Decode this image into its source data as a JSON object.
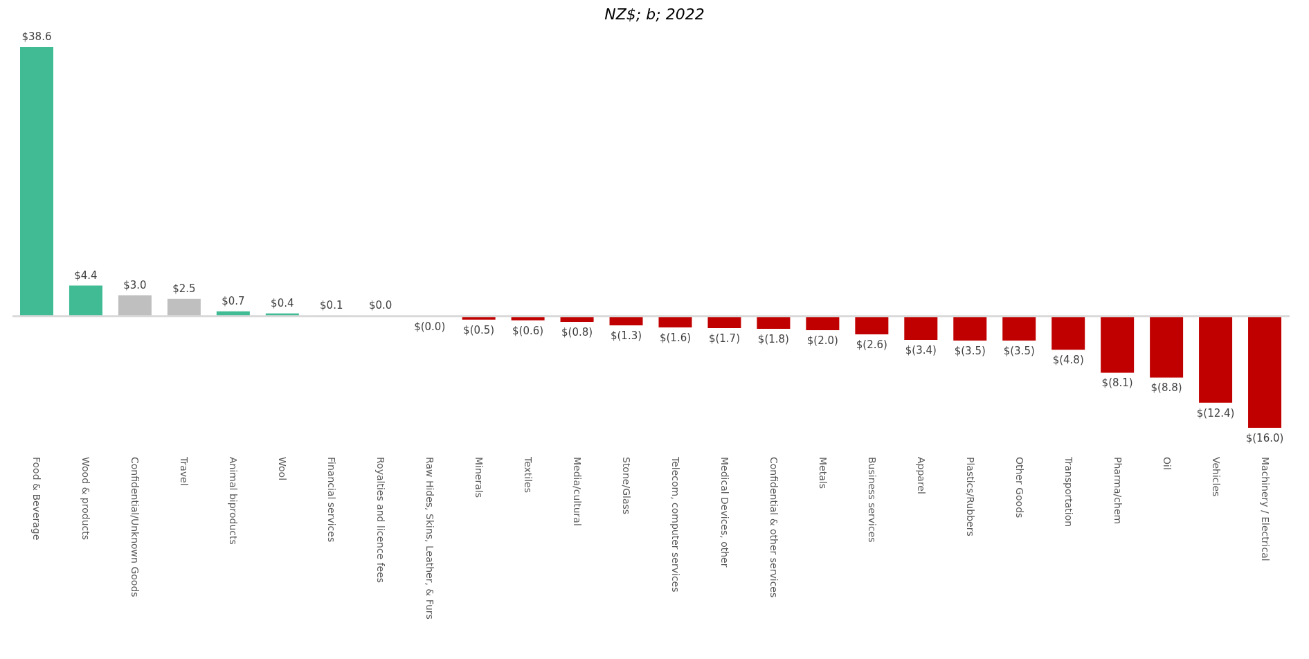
{
  "chart_data": {
    "type": "bar",
    "title": "NZ$; b; 2022",
    "categories": [
      "Food & Beverage",
      "Wood & products",
      "Confidential/Unknown Goods",
      "Travel",
      "Animal biproducts",
      "Wool",
      "Financial services",
      "Royalties and licence fees",
      "Raw Hides, Skins, Leather, & Furs",
      "Minerals",
      "Textiles",
      "Media/cultural",
      "Stone/Glass",
      "Telecom, computer services",
      "Medical Devices, other",
      "Confidential & other services",
      "Metals",
      "Business services",
      "Apparel",
      "Plastics/Rubbers",
      "Other Goods",
      "Transportation",
      "Pharma/chem",
      "Oil",
      "Vehicles",
      "Machinery / Electrical"
    ],
    "values": [
      38.6,
      4.4,
      3.0,
      2.5,
      0.7,
      0.4,
      0.1,
      0.04,
      -0.04,
      -0.5,
      -0.6,
      -0.8,
      -1.3,
      -1.6,
      -1.7,
      -1.8,
      -2.0,
      -2.6,
      -3.4,
      -3.5,
      -3.5,
      -4.8,
      -8.1,
      -8.8,
      -12.4,
      -16.0
    ],
    "value_labels": [
      "$38.6",
      "$4.4",
      "$3.0",
      "$2.5",
      "$0.7",
      "$0.4",
      "$0.1",
      "$0.0",
      "$(0.0)",
      "$(0.5)",
      "$(0.6)",
      "$(0.8)",
      "$(1.3)",
      "$(1.6)",
      "$(1.7)",
      "$(1.8)",
      "$(2.0)",
      "$(2.6)",
      "$(3.4)",
      "$(3.5)",
      "$(3.5)",
      "$(4.8)",
      "$(8.1)",
      "$(8.8)",
      "$(12.4)",
      "$(16.0)"
    ],
    "colors": [
      "#40bb94",
      "#40bb94",
      "#bfbfbf",
      "#bfbfbf",
      "#40bb94",
      "#40bb94",
      "#f4cccc",
      "#f4cccc",
      "#c00000",
      "#c00000",
      "#c00000",
      "#c00000",
      "#c00000",
      "#c00000",
      "#c00000",
      "#c00000",
      "#c00000",
      "#c00000",
      "#c00000",
      "#c00000",
      "#c00000",
      "#c00000",
      "#c00000",
      "#c00000",
      "#c00000",
      "#c00000"
    ],
    "ref_lines": [
      {
        "axis": "y",
        "value": 0,
        "color": "#d9d9d9"
      }
    ],
    "grid": false,
    "legend": false
  }
}
